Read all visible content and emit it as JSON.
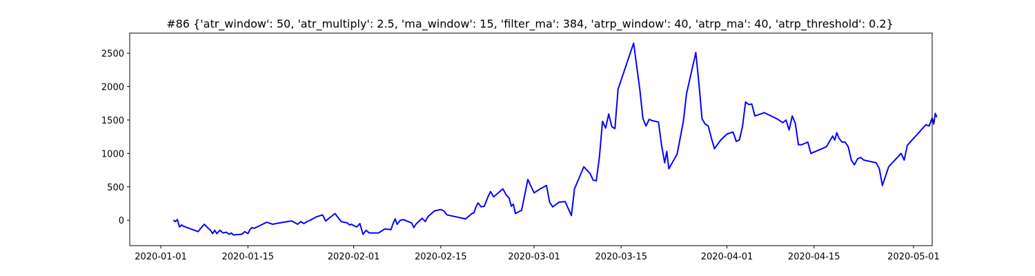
{
  "chart_data": {
    "type": "line",
    "title": "#86 {'atr_window': 50, 'atr_multiply': 2.5, 'ma_window': 15, 'filter_ma': 384, 'atrp_window': 40, 'atrp_ma': 40, 'atrp_threshold': 0.2}",
    "xlabel": "",
    "ylabel": "",
    "xlim": [
      "2019-12-27",
      "2020-05-04"
    ],
    "ylim": [
      -380,
      2800
    ],
    "x_ticks": [
      "2020-01-01",
      "2020-01-15",
      "2020-02-01",
      "2020-02-15",
      "2020-03-01",
      "2020-03-15",
      "2020-04-01",
      "2020-04-15",
      "2020-05-01"
    ],
    "y_ticks": [
      0,
      500,
      1000,
      1500,
      2000,
      2500
    ],
    "grid": false,
    "legend": "none",
    "line_color": "#0000ff",
    "series": [
      {
        "points": [
          [
            "2020-01-03",
            0
          ],
          [
            "2020-01-03",
            -20
          ],
          [
            "2020-01-03",
            10
          ],
          [
            "2020-01-04",
            -100
          ],
          [
            "2020-01-04",
            -70
          ],
          [
            "2020-01-04",
            -90
          ],
          [
            "2020-01-07",
            -170
          ],
          [
            "2020-01-07",
            -110
          ],
          [
            "2020-01-08",
            -60
          ],
          [
            "2020-01-08",
            -110
          ],
          [
            "2020-01-09",
            -150
          ],
          [
            "2020-01-09",
            -200
          ],
          [
            "2020-01-09",
            -150
          ],
          [
            "2020-01-10",
            -200
          ],
          [
            "2020-01-10",
            -150
          ],
          [
            "2020-01-11",
            -190
          ],
          [
            "2020-01-11",
            -180
          ],
          [
            "2020-01-12",
            -210
          ],
          [
            "2020-01-12",
            -190
          ],
          [
            "2020-01-12",
            -220
          ],
          [
            "2020-01-14",
            -210
          ],
          [
            "2020-01-14",
            -170
          ],
          [
            "2020-01-15",
            -200
          ],
          [
            "2020-01-15",
            -140
          ],
          [
            "2020-01-15",
            -110
          ],
          [
            "2020-01-16",
            -120
          ],
          [
            "2020-01-16",
            -100
          ],
          [
            "2020-01-18",
            -30
          ],
          [
            "2020-01-19",
            -60
          ],
          [
            "2020-01-19",
            -50
          ],
          [
            "2020-01-22",
            -10
          ],
          [
            "2020-01-23",
            -60
          ],
          [
            "2020-01-23",
            -20
          ],
          [
            "2020-01-24",
            -50
          ],
          [
            "2020-01-24",
            -20
          ],
          [
            "2020-01-25",
            0
          ],
          [
            "2020-01-26",
            50
          ],
          [
            "2020-01-27",
            80
          ],
          [
            "2020-01-27",
            -10
          ],
          [
            "2020-01-29",
            100
          ],
          [
            "2020-01-30",
            -20
          ],
          [
            "2020-01-30",
            -30
          ],
          [
            "2020-01-31",
            -40
          ],
          [
            "2020-01-31",
            -70
          ],
          [
            "2020-01-31",
            -60
          ],
          [
            "2020-02-01",
            -80
          ],
          [
            "2020-02-01",
            -100
          ],
          [
            "2020-02-02",
            -50
          ],
          [
            "2020-02-02",
            -210
          ],
          [
            "2020-02-03",
            -150
          ],
          [
            "2020-02-03",
            -190
          ],
          [
            "2020-02-05",
            -190
          ],
          [
            "2020-02-06",
            -130
          ],
          [
            "2020-02-07",
            -140
          ],
          [
            "2020-02-07",
            -50
          ],
          [
            "2020-02-07",
            20
          ],
          [
            "2020-02-08",
            -60
          ],
          [
            "2020-02-08",
            0
          ],
          [
            "2020-02-09",
            10
          ],
          [
            "2020-02-10",
            -30
          ],
          [
            "2020-02-10",
            -40
          ],
          [
            "2020-02-10",
            -110
          ],
          [
            "2020-02-11",
            -60
          ],
          [
            "2020-02-12",
            30
          ],
          [
            "2020-02-12",
            -20
          ],
          [
            "2020-02-13",
            60
          ],
          [
            "2020-02-14",
            140
          ],
          [
            "2020-02-15",
            160
          ],
          [
            "2020-02-15",
            140
          ],
          [
            "2020-02-16",
            80
          ],
          [
            "2020-02-19",
            20
          ],
          [
            "2020-02-20",
            100
          ],
          [
            "2020-02-20",
            110
          ],
          [
            "2020-02-20",
            200
          ],
          [
            "2020-02-21",
            260
          ],
          [
            "2020-02-21",
            200
          ],
          [
            "2020-02-22",
            210
          ],
          [
            "2020-02-22",
            330
          ],
          [
            "2020-02-23",
            430
          ],
          [
            "2020-02-23",
            350
          ],
          [
            "2020-02-25",
            470
          ],
          [
            "2020-02-25",
            380
          ],
          [
            "2020-02-26",
            330
          ],
          [
            "2020-02-26",
            210
          ],
          [
            "2020-02-26",
            240
          ],
          [
            "2020-02-27",
            100
          ],
          [
            "2020-02-28",
            150
          ],
          [
            "2020-02-29",
            610
          ],
          [
            "2020-03-01",
            410
          ],
          [
            "2020-03-02",
            470
          ],
          [
            "2020-03-03",
            520
          ],
          [
            "2020-03-03",
            270
          ],
          [
            "2020-03-04",
            200
          ],
          [
            "2020-03-05",
            270
          ],
          [
            "2020-03-06",
            280
          ],
          [
            "2020-03-07",
            70
          ],
          [
            "2020-03-07",
            470
          ],
          [
            "2020-03-09",
            800
          ],
          [
            "2020-03-10",
            700
          ],
          [
            "2020-03-10",
            600
          ],
          [
            "2020-03-11",
            590
          ],
          [
            "2020-03-11",
            940
          ],
          [
            "2020-03-12",
            1480
          ],
          [
            "2020-03-12",
            1380
          ],
          [
            "2020-03-13",
            1590
          ],
          [
            "2020-03-13",
            1400
          ],
          [
            "2020-03-14",
            1370
          ],
          [
            "2020-03-14",
            1960
          ],
          [
            "2020-03-17",
            2650
          ],
          [
            "2020-03-18",
            1960
          ],
          [
            "2020-03-18",
            1520
          ],
          [
            "2020-03-19",
            1410
          ],
          [
            "2020-03-19",
            1510
          ],
          [
            "2020-03-20",
            1490
          ],
          [
            "2020-03-21",
            1470
          ],
          [
            "2020-03-21",
            1120
          ],
          [
            "2020-03-22",
            860
          ],
          [
            "2020-03-22",
            1030
          ],
          [
            "2020-03-22",
            770
          ],
          [
            "2020-03-24",
            990
          ],
          [
            "2020-03-25",
            1480
          ],
          [
            "2020-03-25",
            1890
          ],
          [
            "2020-03-27",
            2510
          ],
          [
            "2020-03-27",
            2050
          ],
          [
            "2020-03-28",
            1520
          ],
          [
            "2020-03-28",
            1440
          ],
          [
            "2020-03-29",
            1410
          ],
          [
            "2020-03-29",
            1230
          ],
          [
            "2020-03-30",
            1070
          ],
          [
            "2020-03-31",
            1200
          ],
          [
            "2020-04-01",
            1290
          ],
          [
            "2020-04-02",
            1320
          ],
          [
            "2020-04-02",
            1180
          ],
          [
            "2020-04-03",
            1200
          ],
          [
            "2020-04-03",
            1400
          ],
          [
            "2020-04-04",
            1770
          ],
          [
            "2020-04-04",
            1730
          ],
          [
            "2020-04-05",
            1740
          ],
          [
            "2020-04-05",
            1560
          ],
          [
            "2020-04-07",
            1610
          ],
          [
            "2020-04-09",
            1520
          ],
          [
            "2020-04-10",
            1460
          ],
          [
            "2020-04-10",
            1500
          ],
          [
            "2020-04-11",
            1350
          ],
          [
            "2020-04-11",
            1560
          ],
          [
            "2020-04-12",
            1450
          ],
          [
            "2020-04-12",
            1130
          ],
          [
            "2020-04-13",
            1130
          ],
          [
            "2020-04-14",
            1170
          ],
          [
            "2020-04-14",
            1000
          ],
          [
            "2020-04-17",
            1100
          ],
          [
            "2020-04-18",
            1260
          ],
          [
            "2020-04-18",
            1200
          ],
          [
            "2020-04-18",
            1310
          ],
          [
            "2020-04-19",
            1230
          ],
          [
            "2020-04-19",
            1170
          ],
          [
            "2020-04-20",
            1170
          ],
          [
            "2020-04-20",
            1100
          ],
          [
            "2020-04-21",
            900
          ],
          [
            "2020-04-21",
            830
          ],
          [
            "2020-04-22",
            920
          ],
          [
            "2020-04-22",
            940
          ],
          [
            "2020-04-23",
            900
          ],
          [
            "2020-04-25",
            860
          ],
          [
            "2020-04-25",
            770
          ],
          [
            "2020-04-26",
            520
          ],
          [
            "2020-04-27",
            800
          ],
          [
            "2020-04-29",
            1000
          ],
          [
            "2020-04-29",
            900
          ],
          [
            "2020-04-30",
            1120
          ],
          [
            "2020-05-03",
            1430
          ],
          [
            "2020-05-03",
            1410
          ],
          [
            "2020-05-04",
            1530
          ],
          [
            "2020-05-04",
            1440
          ],
          [
            "2020-05-04",
            1600
          ],
          [
            "2020-05-04",
            1540
          ]
        ]
      }
    ]
  }
}
